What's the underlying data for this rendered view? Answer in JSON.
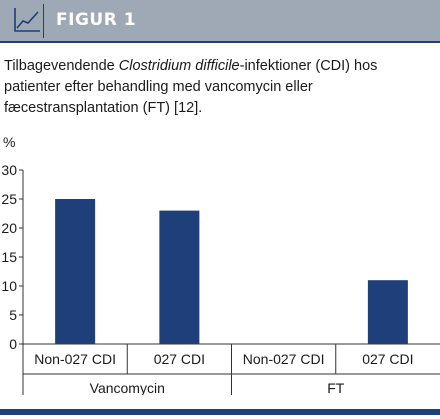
{
  "figure": {
    "label": "FIGUR 1",
    "icon": "line-chart-icon",
    "caption_pre": "Tilbagevendende ",
    "caption_italic": "Clostridium difficile",
    "caption_post": "-infektioner (CDI) hos patienter efter behandling med vancomycin eller fæcestransplantation (FT) [12]."
  },
  "colors": {
    "header_bg": "#9fa8b5",
    "bar": "#1f3f7a",
    "accent": "#1f3f7a"
  },
  "chart_data": {
    "type": "bar",
    "ylabel": "%",
    "ylim": [
      0,
      30
    ],
    "yticks": [
      0,
      5,
      10,
      15,
      20,
      25,
      30
    ],
    "groups": [
      {
        "name": "Vancomycin",
        "categories": [
          "Non-027 CDI",
          "027 CDI"
        ],
        "values": [
          25,
          23
        ]
      },
      {
        "name": "FT",
        "categories": [
          "Non-027 CDI",
          "027 CDI"
        ],
        "values": [
          0,
          11
        ]
      }
    ],
    "grid": false,
    "legend": "none"
  }
}
